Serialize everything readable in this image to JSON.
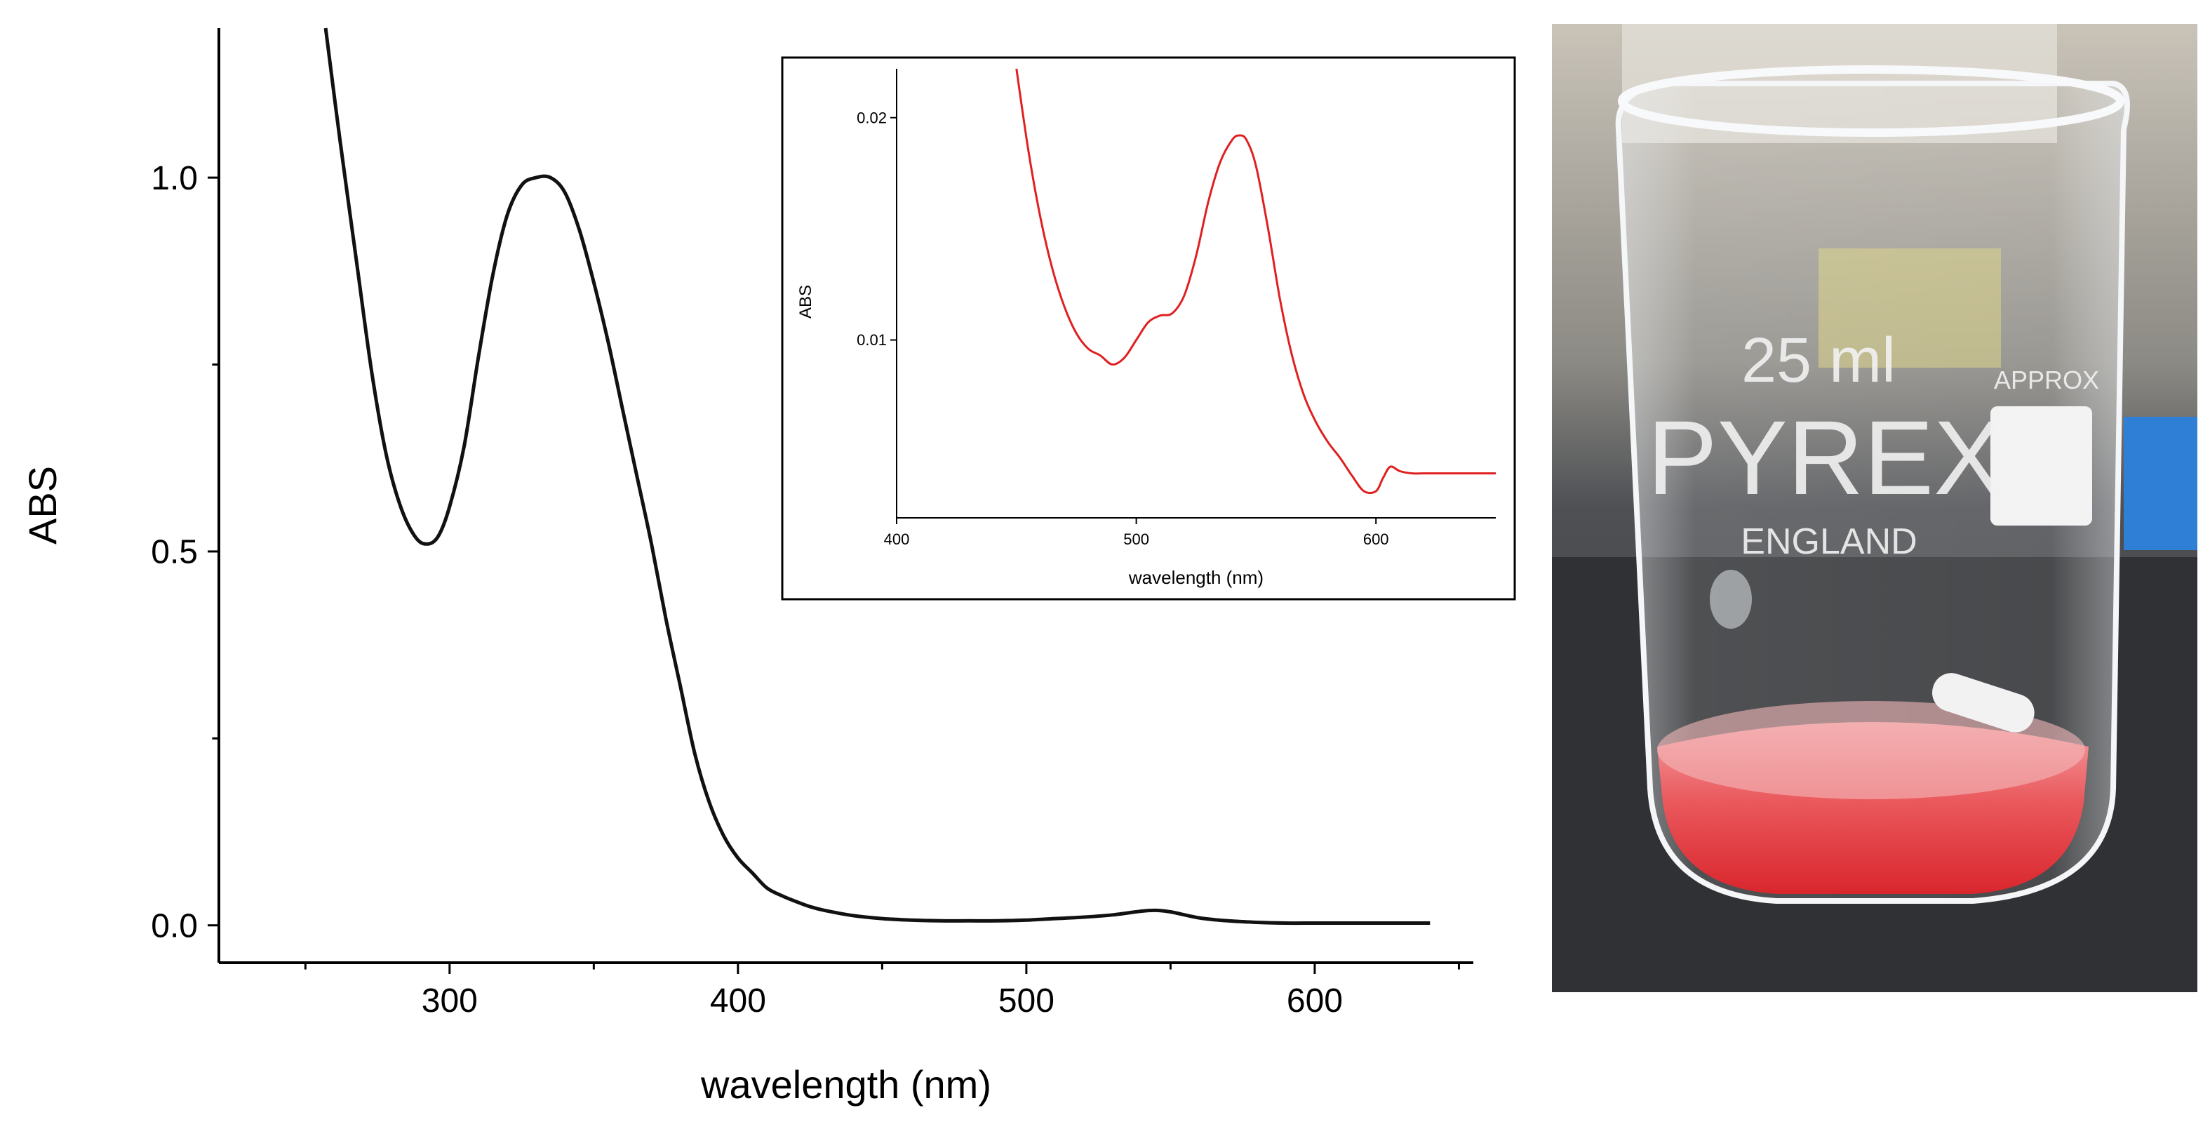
{
  "chart_data": [
    {
      "type": "line",
      "title": "",
      "xlabel": "wavelength (nm)",
      "ylabel": "ABS",
      "xlim": [
        220,
        655
      ],
      "ylim": [
        -0.05,
        1.2
      ],
      "x_ticks": [
        300,
        400,
        500,
        600
      ],
      "x_tick_labels": [
        "300",
        "400",
        "500",
        "600"
      ],
      "x_minor_ticks": [
        250,
        350,
        450,
        550,
        650
      ],
      "y_ticks": [
        0.0,
        0.5,
        1.0
      ],
      "y_tick_labels": [
        "0.0",
        "0.5",
        "1.0"
      ],
      "y_minor_ticks": [
        0.25,
        0.75
      ],
      "grid": false,
      "line_color": "#111111",
      "series": [
        {
          "x": [
            257,
            262,
            268,
            273,
            278,
            283,
            288,
            292,
            296,
            300,
            305,
            310,
            315,
            320,
            325,
            330,
            335,
            340,
            345,
            350,
            355,
            360,
            365,
            370,
            375,
            380,
            385,
            390,
            395,
            400,
            405,
            410,
            415,
            420,
            425,
            430,
            440,
            450,
            460,
            470,
            480,
            490,
            500,
            510,
            520,
            530,
            540,
            545,
            550,
            560,
            570,
            580,
            590,
            600,
            610,
            620,
            640
          ],
          "y": [
            1.2,
            1.05,
            0.88,
            0.74,
            0.63,
            0.56,
            0.52,
            0.51,
            0.52,
            0.56,
            0.64,
            0.76,
            0.87,
            0.95,
            0.99,
            1.0,
            1.0,
            0.98,
            0.93,
            0.86,
            0.78,
            0.69,
            0.6,
            0.51,
            0.41,
            0.32,
            0.23,
            0.165,
            0.12,
            0.09,
            0.07,
            0.05,
            0.04,
            0.032,
            0.025,
            0.02,
            0.013,
            0.009,
            0.007,
            0.006,
            0.006,
            0.006,
            0.007,
            0.009,
            0.011,
            0.014,
            0.019,
            0.02,
            0.018,
            0.01,
            0.006,
            0.004,
            0.003,
            0.003,
            0.003,
            0.003,
            0.003
          ]
        }
      ]
    },
    {
      "type": "line",
      "title": "",
      "xlabel": "wavelength (nm)",
      "ylabel": "ABS",
      "xlim": [
        400,
        650
      ],
      "ylim": [
        0.002,
        0.0222
      ],
      "x_ticks": [
        400,
        500,
        600
      ],
      "x_tick_labels": [
        "400",
        "500",
        "600"
      ],
      "y_ticks": [
        0.01,
        0.02
      ],
      "y_tick_labels": [
        "0.01",
        "0.02"
      ],
      "grid": false,
      "line_color": "#e02020",
      "series": [
        {
          "x": [
            450,
            455,
            460,
            465,
            470,
            475,
            480,
            485,
            490,
            495,
            500,
            505,
            510,
            515,
            520,
            525,
            530,
            535,
            540,
            543,
            546,
            550,
            555,
            560,
            565,
            570,
            575,
            580,
            585,
            590,
            595,
            600,
            603,
            606,
            610,
            615,
            620,
            630,
            640,
            650
          ],
          "y": [
            0.0222,
            0.0185,
            0.0155,
            0.0132,
            0.0115,
            0.0103,
            0.0096,
            0.0093,
            0.0089,
            0.0092,
            0.01,
            0.0108,
            0.0111,
            0.0112,
            0.012,
            0.0138,
            0.0162,
            0.018,
            0.019,
            0.0192,
            0.019,
            0.0178,
            0.015,
            0.0118,
            0.0093,
            0.0075,
            0.0063,
            0.0054,
            0.0047,
            0.0039,
            0.0032,
            0.0032,
            0.0038,
            0.0043,
            0.0041,
            0.004,
            0.004,
            0.004,
            0.004,
            0.004
          ]
        }
      ]
    }
  ],
  "photo": {
    "volume_mark": "25 ml",
    "approx_label": "APPROX",
    "brand": "PYREX",
    "origin": "ENGLAND",
    "liquid_color": "#e8454a",
    "background_color": "#5d5f62"
  }
}
